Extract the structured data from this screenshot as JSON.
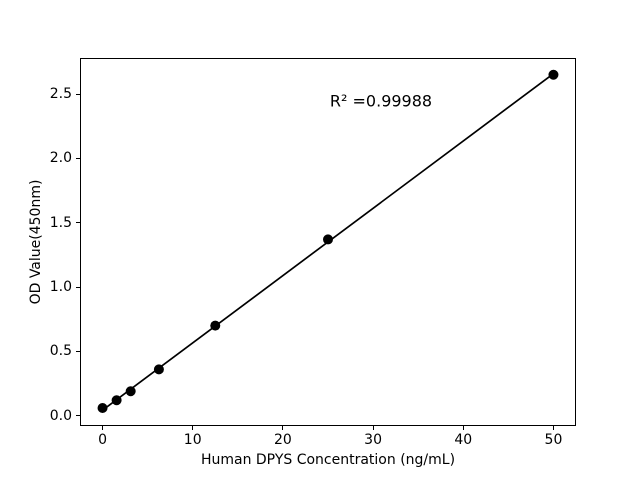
{
  "figure": {
    "background": "#ffffff",
    "foreground": "#000000"
  },
  "chart_data": {
    "type": "scatter",
    "title": "",
    "xlabel": "Human DPYS Concentration (ng/mL)",
    "ylabel": "OD Value(450nm)",
    "x": [
      0,
      1.56,
      3.12,
      6.25,
      12.5,
      25,
      50
    ],
    "y": [
      0.06,
      0.12,
      0.19,
      0.36,
      0.7,
      1.37,
      2.65
    ],
    "xticks": [
      0,
      10,
      20,
      30,
      40,
      50
    ],
    "xtick_labels": [
      "0",
      "10",
      "20",
      "30",
      "40",
      "50"
    ],
    "yticks": [
      0,
      0.5,
      1,
      1.5,
      2,
      2.5
    ],
    "ytick_labels": [
      "0.0",
      "0.5",
      "1.0",
      "1.5",
      "2.0",
      "2.5"
    ],
    "xlim": [
      -2.5,
      52.5
    ],
    "ylim": [
      -0.08,
      2.78
    ],
    "grid": false,
    "fit_line": true,
    "r_squared": "R² =0.99988",
    "marker_color": "#000000",
    "line_color": "#000000"
  }
}
